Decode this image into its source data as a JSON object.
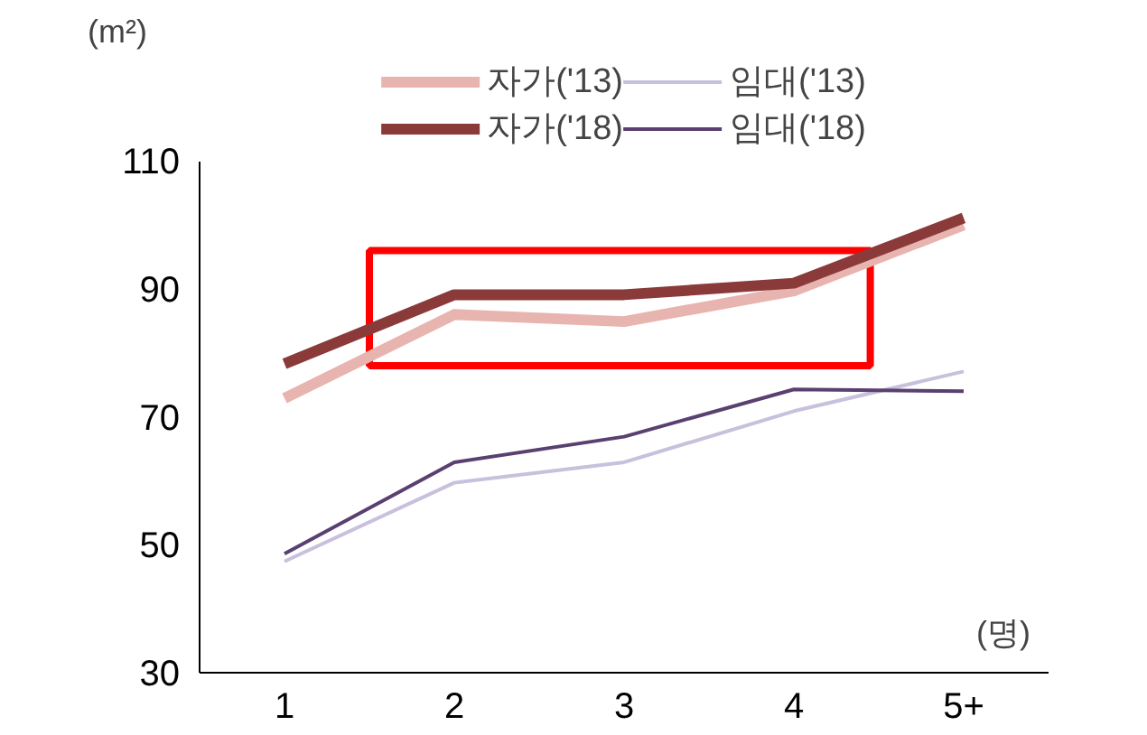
{
  "chart_data": {
    "type": "line",
    "ylabel": "(m²)",
    "xlabel": "(명)",
    "categories": [
      "1",
      "2",
      "3",
      "4",
      "5+"
    ],
    "series": [
      {
        "name": "자가('13)",
        "color": "#e8b4b0",
        "values": [
          72.9,
          86,
          84.9,
          89.7,
          100
        ]
      },
      {
        "name": "자가('18)",
        "color": "#8b3a3a",
        "values": [
          78.3,
          89.1,
          89.1,
          90.9,
          101.1
        ]
      },
      {
        "name": "임대('13)",
        "color": "#c8c0dc",
        "values": [
          47.4,
          59.7,
          62.9,
          70.9,
          77.1
        ]
      },
      {
        "name": "임대('18)",
        "color": "#5a4070",
        "values": [
          48.6,
          62.9,
          66.9,
          74.3,
          74
        ]
      }
    ],
    "ylim": [
      30,
      110
    ],
    "yticks": [
      30,
      50,
      70,
      90,
      110
    ],
    "legend": "top",
    "line_style": "solid"
  }
}
